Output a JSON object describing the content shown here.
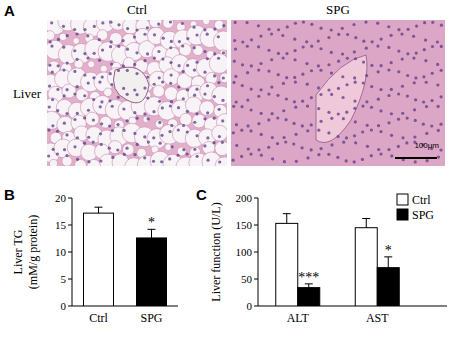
{
  "figure": {
    "panel_labels": [
      "A",
      "B",
      "C"
    ],
    "columns": [
      "Ctrl",
      "SPG"
    ],
    "row": "Liver",
    "scale_bar": "100μm"
  },
  "chart_data": [
    {
      "type": "bar",
      "categories": [
        "Ctrl",
        "SPG"
      ],
      "values": [
        17.2,
        12.6
      ],
      "errors": [
        1.1,
        1.6
      ],
      "colors": [
        "#ffffff",
        "#000000"
      ],
      "ylabel": [
        "Liver TG",
        "(mM/g protein)"
      ],
      "annotations": [
        null,
        "*"
      ],
      "ylim": [
        0,
        20
      ],
      "yticks": [
        0,
        5,
        10,
        15,
        20
      ],
      "grid": false
    },
    {
      "type": "bar",
      "categories": [
        "ALT",
        "AST"
      ],
      "series": [
        {
          "name": "Ctrl",
          "color": "#ffffff",
          "values": [
            153,
            145
          ],
          "errors": [
            18,
            17
          ],
          "annotations": [
            null,
            null
          ]
        },
        {
          "name": "SPG",
          "color": "#000000",
          "values": [
            34,
            71
          ],
          "errors": [
            7,
            20
          ],
          "annotations": [
            "***",
            "*"
          ]
        }
      ],
      "ylabel": "Liver function (U/L)",
      "ylim": [
        0,
        200
      ],
      "yticks": [
        0,
        50,
        100,
        150,
        200
      ],
      "grid": false,
      "legend": "top-right"
    }
  ]
}
